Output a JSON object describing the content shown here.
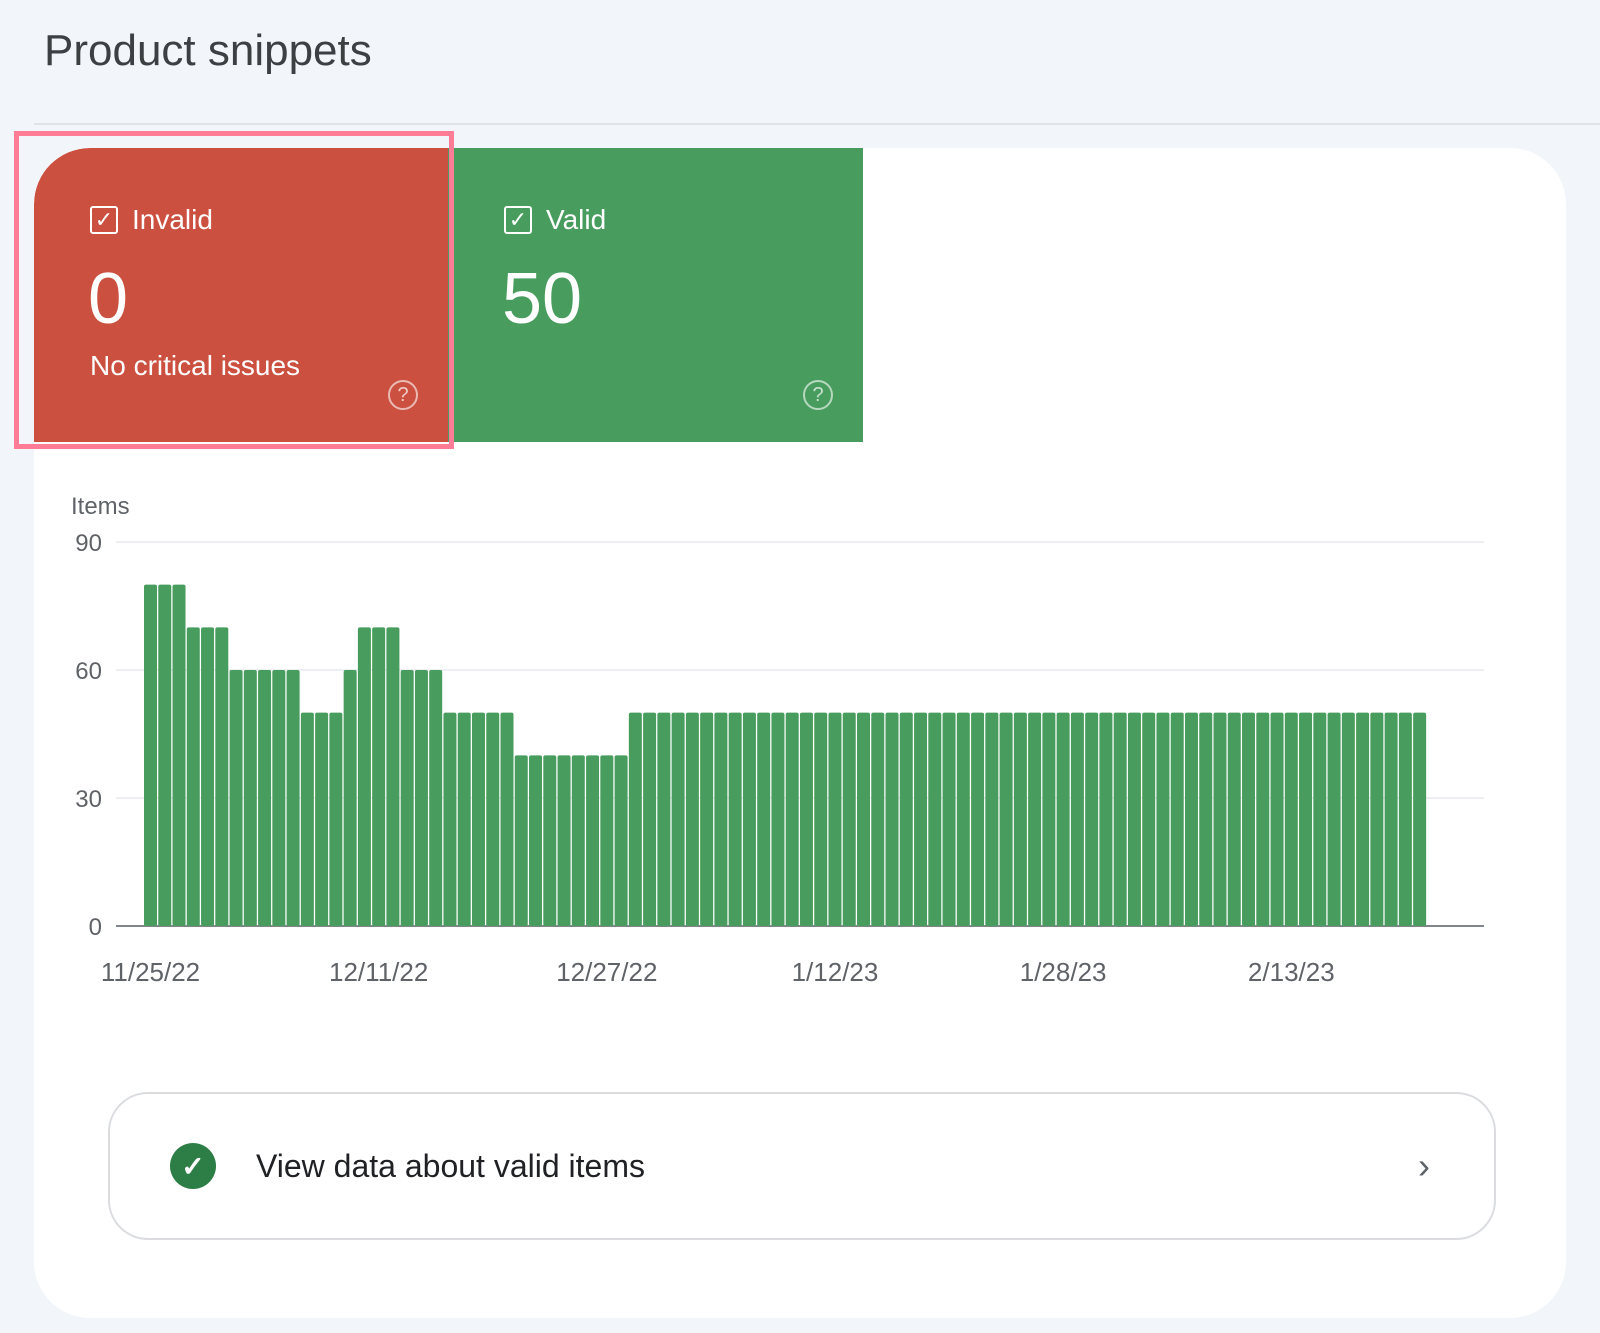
{
  "page_title": "Product snippets",
  "tiles": {
    "invalid": {
      "label": "Invalid",
      "count": "0",
      "subtitle": "No critical issues",
      "color": "#cb5040",
      "checked": true,
      "help_icon": "?"
    },
    "valid": {
      "label": "Valid",
      "count": "50",
      "color": "#489d5e",
      "checked": true,
      "help_icon": "?"
    }
  },
  "chart_data": {
    "type": "bar",
    "ylabel": "Items",
    "ylim": [
      0,
      90
    ],
    "yticks": [
      "0",
      "30",
      "60",
      "90"
    ],
    "xtick_labels": [
      "11/25/22",
      "12/11/22",
      "12/27/22",
      "1/12/23",
      "1/28/23",
      "2/13/23"
    ],
    "x_start": "11/25/22",
    "bar_color": "#489d5e",
    "grid": true,
    "values": [
      80,
      80,
      80,
      70,
      70,
      70,
      60,
      60,
      60,
      60,
      60,
      50,
      50,
      50,
      60,
      70,
      70,
      70,
      60,
      60,
      60,
      50,
      50,
      50,
      50,
      50,
      40,
      40,
      40,
      40,
      40,
      40,
      40,
      40,
      50,
      50,
      50,
      50,
      50,
      50,
      50,
      50,
      50,
      50,
      50,
      50,
      50,
      50,
      50,
      50,
      50,
      50,
      50,
      50,
      50,
      50,
      50,
      50,
      50,
      50,
      50,
      50,
      50,
      50,
      50,
      50,
      50,
      50,
      50,
      50,
      50,
      50,
      50,
      50,
      50,
      50,
      50,
      50,
      50,
      50,
      50,
      50,
      50,
      50,
      50,
      50,
      50,
      50,
      50,
      50
    ]
  },
  "link": {
    "label": "View data about valid items",
    "icon": "check-circle-icon",
    "chevron": "›"
  }
}
